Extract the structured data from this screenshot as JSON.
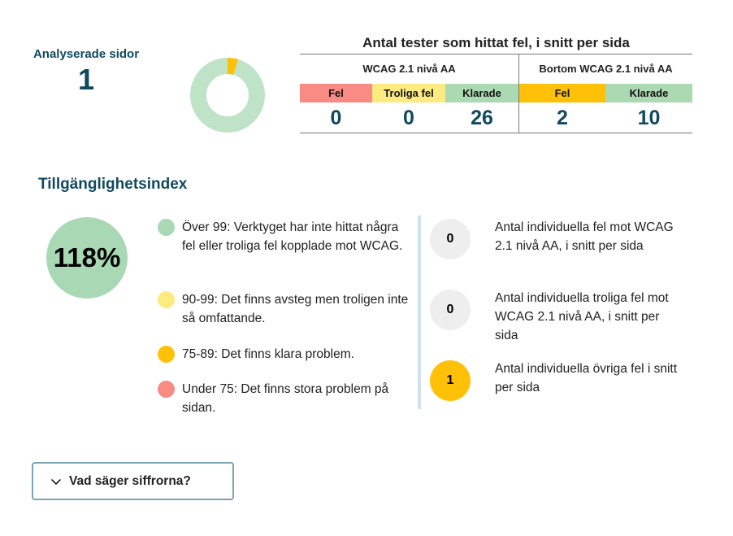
{
  "analysed": {
    "label": "Analyserade sidor",
    "count": "1"
  },
  "donut": {
    "fail_fraction": 0.045,
    "pass_color": "#bfe3c6",
    "fail_color": "#ffc107"
  },
  "tests": {
    "title": "Antal tester som hittat fel, i snitt per sida",
    "wcag": {
      "title": "WCAG 2.1 nivå AA",
      "columns": [
        {
          "label": "Fel",
          "value": "0",
          "color": "#f88b84"
        },
        {
          "label": "Troliga fel",
          "value": "0",
          "color": "#fdea80"
        },
        {
          "label": "Klarade",
          "value": "26",
          "color": "#abd9b2"
        }
      ]
    },
    "beyond": {
      "title": "Bortom WCAG 2.1 nivå AA",
      "columns": [
        {
          "label": "Fel",
          "value": "2",
          "color": "#ffc107"
        },
        {
          "label": "Klarade",
          "value": "10",
          "color": "#abd9b2"
        }
      ]
    }
  },
  "index": {
    "title": "Tillgänglighetsindex",
    "value": "118%",
    "legend": [
      {
        "text": "Över 99: Verktyget har inte hittat några fel eller troliga fel kopplade mot WCAG.",
        "color": "#a8d8b4"
      },
      {
        "text": "90-99: Det finns avsteg men troligen inte så omfattande.",
        "color": "#fdea80"
      },
      {
        "text": "75-89: Det finns klara problem.",
        "color": "#ffc107"
      },
      {
        "text": "Under 75: Det finns stora problem på sidan.",
        "color": "#f88b84"
      }
    ]
  },
  "stats": [
    {
      "value": "0",
      "text": "Antal individuella fel mot WCAG 2.1 nivå AA, i snitt per sida",
      "color": "#eeeeee"
    },
    {
      "value": "0",
      "text": "Antal individuella troliga fel mot WCAG 2.1 nivå AA, i snitt per sida",
      "color": "#eeeeee"
    },
    {
      "value": "1",
      "text": "Antal individuella övriga fel i snitt per sida",
      "color": "#ffc107"
    }
  ],
  "details": {
    "label": "Vad säger siffrorna?",
    "icon": "chevron-down-icon"
  }
}
